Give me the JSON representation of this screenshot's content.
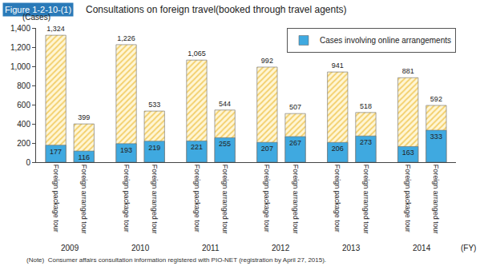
{
  "chart_data": {
    "type": "bar",
    "figure_label": "Figure 1-2-10-(1)",
    "title": "Consultations on foreign travel(booked through travel agents)",
    "y_label": "(Cases)",
    "x_label": "(FY)",
    "note": "(Note)  Consumer affairs consultation information registered with PIO-NET (registration by April 27, 2015).",
    "groups": [
      "2009",
      "2010",
      "2011",
      "2012",
      "2013",
      "2014"
    ],
    "categories": [
      "Foreign package tour",
      "Foreign arranged tour",
      "Foreign package tour",
      "Foreign arranged tour",
      "Foreign package tour",
      "Foreign arranged tour",
      "Foreign package tour",
      "Foreign arranged tour",
      "Foreign package tour",
      "Foreign arranged tour",
      "Foreign package tour",
      "Foreign arranged tour"
    ],
    "series": [
      {
        "color": "#f3cf6a",
        "marker": "hatched",
        "values": [
          1324,
          399,
          1226,
          533,
          1065,
          544,
          992,
          507,
          941,
          518,
          881,
          592
        ],
        "value_labels": [
          "1,324",
          "399",
          "1,226",
          "533",
          "1,065",
          "544",
          "992",
          "507",
          "941",
          "518",
          "881",
          "592"
        ]
      },
      {
        "name": "Cases involving online arrangements",
        "color": "#3fa9e0",
        "values": [
          177,
          116,
          193,
          219,
          221,
          255,
          207,
          267,
          206,
          273,
          163,
          333
        ]
      }
    ],
    "ylim": [
      0,
      1400
    ],
    "yticks": [
      0,
      200,
      400,
      600,
      800,
      {
        "value": 1000,
        "label": "1,000"
      },
      {
        "value": 1200,
        "label": "1,200"
      },
      {
        "value": 1400,
        "label": "1,400"
      }
    ],
    "grid": false,
    "stacked": false,
    "data_labels": true,
    "legend": "upper right"
  }
}
